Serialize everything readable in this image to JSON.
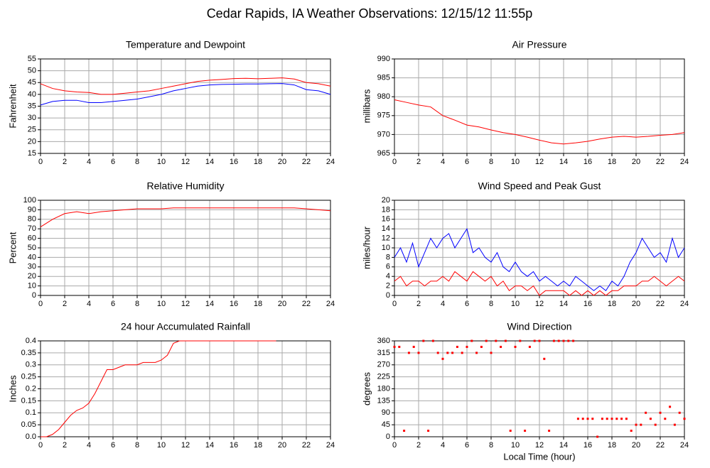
{
  "title": "Cedar Rapids, IA Weather Observations: 12/15/12 11:55p",
  "chart_data": [
    {
      "type": "line",
      "title": "Temperature and Dewpoint",
      "ylabel": "Fahrenheit",
      "x": [
        0,
        1,
        2,
        3,
        4,
        5,
        6,
        7,
        8,
        9,
        10,
        11,
        12,
        13,
        14,
        15,
        16,
        17,
        18,
        19,
        20,
        21,
        22,
        23,
        24
      ],
      "series": [
        {
          "color": "#ff0000",
          "values": [
            44.5,
            42.5,
            41.5,
            41,
            40.8,
            40,
            40,
            40.5,
            41,
            41.5,
            42.5,
            43.5,
            44.5,
            45.5,
            46,
            46.3,
            46.7,
            46.8,
            46.6,
            46.8,
            47,
            46.5,
            45,
            44.5,
            43.5
          ]
        },
        {
          "color": "#0000ff",
          "values": [
            35.5,
            37,
            37.5,
            37.5,
            36.5,
            36.5,
            37,
            37.5,
            38,
            39,
            40,
            41.5,
            42.5,
            43.5,
            44,
            44.2,
            44.3,
            44.4,
            44.4,
            44.5,
            44.6,
            44,
            42,
            41.5,
            40
          ]
        }
      ],
      "xlim": [
        0,
        24
      ],
      "xticks": [
        0,
        2,
        4,
        6,
        8,
        10,
        12,
        14,
        16,
        18,
        20,
        22,
        24
      ],
      "ylim": [
        15,
        55
      ],
      "yticks": [
        15,
        20,
        25,
        30,
        35,
        40,
        45,
        50,
        55
      ],
      "grid": true
    },
    {
      "type": "line",
      "title": "Air Pressure",
      "ylabel": "millibars",
      "x": [
        0,
        1,
        2,
        3,
        4,
        5,
        6,
        7,
        8,
        9,
        10,
        11,
        12,
        13,
        14,
        15,
        16,
        17,
        18,
        19,
        20,
        21,
        22,
        23,
        24
      ],
      "series": [
        {
          "color": "#ff0000",
          "values": [
            979.2,
            978.5,
            977.8,
            977.3,
            975,
            973.8,
            972.5,
            972,
            971.2,
            970.5,
            970,
            969.3,
            968.5,
            967.8,
            967.5,
            967.8,
            968.2,
            968.8,
            969.3,
            969.5,
            969.3,
            969.5,
            969.8,
            970,
            970.5
          ]
        }
      ],
      "xlim": [
        0,
        24
      ],
      "xticks": [
        0,
        2,
        4,
        6,
        8,
        10,
        12,
        14,
        16,
        18,
        20,
        22,
        24
      ],
      "ylim": [
        965,
        990
      ],
      "yticks": [
        965,
        970,
        975,
        980,
        985,
        990
      ],
      "grid": true
    },
    {
      "type": "line",
      "title": "Relative Humidity",
      "ylabel": "Percent",
      "x": [
        0,
        1,
        2,
        3,
        4,
        5,
        6,
        7,
        8,
        9,
        10,
        11,
        12,
        13,
        14,
        15,
        16,
        17,
        18,
        19,
        20,
        21,
        22,
        23,
        24
      ],
      "series": [
        {
          "color": "#ff0000",
          "values": [
            72,
            80,
            86,
            88,
            86,
            88,
            89,
            90,
            91,
            91,
            91,
            92,
            92,
            92,
            92,
            92,
            92,
            92,
            92,
            92,
            92,
            92,
            91,
            90,
            89
          ]
        }
      ],
      "xlim": [
        0,
        24
      ],
      "xticks": [
        0,
        2,
        4,
        6,
        8,
        10,
        12,
        14,
        16,
        18,
        20,
        22,
        24
      ],
      "ylim": [
        0,
        100
      ],
      "yticks": [
        0,
        10,
        20,
        30,
        40,
        50,
        60,
        70,
        80,
        90,
        100
      ],
      "grid": true
    },
    {
      "type": "line",
      "title": "Wind Speed and Peak Gust",
      "ylabel": "miles/hour",
      "x": [
        0,
        0.5,
        1,
        1.5,
        2,
        2.5,
        3,
        3.5,
        4,
        4.5,
        5,
        5.5,
        6,
        6.5,
        7,
        7.5,
        8,
        8.5,
        9,
        9.5,
        10,
        10.5,
        11,
        11.5,
        12,
        12.5,
        13,
        13.5,
        14,
        14.5,
        15,
        15.5,
        16,
        16.5,
        17,
        17.5,
        18,
        18.5,
        19,
        19.5,
        20,
        20.5,
        21,
        21.5,
        22,
        22.5,
        23,
        23.5,
        24
      ],
      "series": [
        {
          "color": "#0000ff",
          "values": [
            8,
            10,
            7,
            11,
            6,
            9,
            12,
            10,
            12,
            13,
            10,
            12,
            14,
            9,
            10,
            8,
            7,
            9,
            6,
            5,
            7,
            5,
            4,
            5,
            3,
            4,
            3,
            2,
            3,
            2,
            4,
            3,
            2,
            1,
            2,
            1,
            3,
            2,
            4,
            7,
            9,
            12,
            10,
            8,
            9,
            7,
            12,
            8,
            10
          ]
        },
        {
          "color": "#ff0000",
          "values": [
            3,
            4,
            2,
            3,
            3,
            2,
            3,
            3,
            4,
            3,
            5,
            4,
            3,
            5,
            4,
            3,
            4,
            2,
            3,
            1,
            2,
            2,
            1,
            2,
            0,
            1,
            1,
            1,
            1,
            0,
            1,
            0,
            1,
            0,
            1,
            0,
            1,
            1,
            2,
            2,
            2,
            3,
            3,
            4,
            3,
            2,
            3,
            4,
            3
          ]
        }
      ],
      "xlim": [
        0,
        24
      ],
      "xticks": [
        0,
        2,
        4,
        6,
        8,
        10,
        12,
        14,
        16,
        18,
        20,
        22,
        24
      ],
      "ylim": [
        0,
        20
      ],
      "yticks": [
        0,
        2,
        4,
        6,
        8,
        10,
        12,
        14,
        16,
        18,
        20
      ],
      "grid": true
    },
    {
      "type": "line",
      "title": "24 hour Accumulated Rainfall",
      "ylabel": "Inches",
      "x": [
        0,
        0.5,
        1,
        1.5,
        2,
        2.5,
        3,
        3.5,
        4,
        4.5,
        5,
        5.5,
        6,
        6.5,
        7,
        7.5,
        8,
        8.5,
        9,
        9.5,
        10,
        10.5,
        11,
        11.5,
        12,
        12.5,
        13,
        13.5,
        14,
        14.5,
        15,
        15.5,
        16,
        16.5,
        17,
        17.5,
        18,
        18.5,
        19,
        19.5
      ],
      "series": [
        {
          "color": "#ff0000",
          "values": [
            0,
            0,
            0.01,
            0.03,
            0.06,
            0.09,
            0.11,
            0.12,
            0.14,
            0.18,
            0.23,
            0.28,
            0.28,
            0.29,
            0.3,
            0.3,
            0.3,
            0.31,
            0.31,
            0.31,
            0.32,
            0.34,
            0.39,
            0.4,
            0.4,
            0.4,
            0.4,
            0.4,
            0.4,
            0.4,
            0.4,
            0.4,
            0.4,
            0.4,
            0.4,
            0.4,
            0.4,
            0.4,
            0.4,
            0.4
          ]
        }
      ],
      "xlim": [
        0,
        24
      ],
      "xticks": [
        0,
        2,
        4,
        6,
        8,
        10,
        12,
        14,
        16,
        18,
        20,
        22,
        24
      ],
      "ylim": [
        0,
        0.4
      ],
      "yticks": [
        {
          "value": 0,
          "label": "0.0"
        },
        0.05,
        0.1,
        0.15,
        0.2,
        0.25,
        0.3,
        0.35,
        0.4
      ],
      "grid": true
    },
    {
      "type": "scatter",
      "title": "Wind Direction",
      "ylabel": "degrees",
      "xlabel": "Local Time (hour)",
      "x": [
        0,
        0.4,
        0.8,
        1.2,
        1.6,
        2,
        2.4,
        2.8,
        3.2,
        3.6,
        4,
        4.4,
        4.8,
        5.2,
        5.6,
        6,
        6.4,
        6.8,
        7.2,
        7.6,
        8,
        8.4,
        8.8,
        9.2,
        9.6,
        10,
        10.4,
        10.8,
        11.2,
        11.6,
        12,
        12.4,
        12.8,
        13.2,
        13.6,
        14,
        14.4,
        14.8,
        15.2,
        15.6,
        16,
        16.4,
        16.8,
        17.2,
        17.6,
        18,
        18.4,
        18.8,
        19.2,
        19.6,
        20,
        20.4,
        20.8,
        21.2,
        21.6,
        22,
        22.4,
        22.8,
        23.2,
        23.6,
        24
      ],
      "series": [
        {
          "color": "#ff0000",
          "values": [
            337.5,
            337.5,
            22.5,
            315,
            337.5,
            315,
            360,
            22.5,
            360,
            315,
            292.5,
            315,
            315,
            337.5,
            315,
            337.5,
            360,
            315,
            337.5,
            360,
            315,
            360,
            337.5,
            360,
            22.5,
            337.5,
            360,
            22.5,
            337.5,
            360,
            360,
            292.5,
            22.5,
            360,
            360,
            360,
            360,
            360,
            67.5,
            67.5,
            67.5,
            67.5,
            0,
            67.5,
            67.5,
            67.5,
            67.5,
            67.5,
            67.5,
            22.5,
            45,
            45,
            90,
            67.5,
            45,
            90,
            67.5,
            112.5,
            45,
            90,
            67.5
          ]
        }
      ],
      "xlim": [
        0,
        24
      ],
      "xticks": [
        0,
        2,
        4,
        6,
        8,
        10,
        12,
        14,
        16,
        18,
        20,
        22,
        24
      ],
      "ylim": [
        0,
        360
      ],
      "yticks": [
        0,
        45,
        90,
        135,
        180,
        225,
        270,
        315,
        360
      ],
      "grid": true
    }
  ]
}
